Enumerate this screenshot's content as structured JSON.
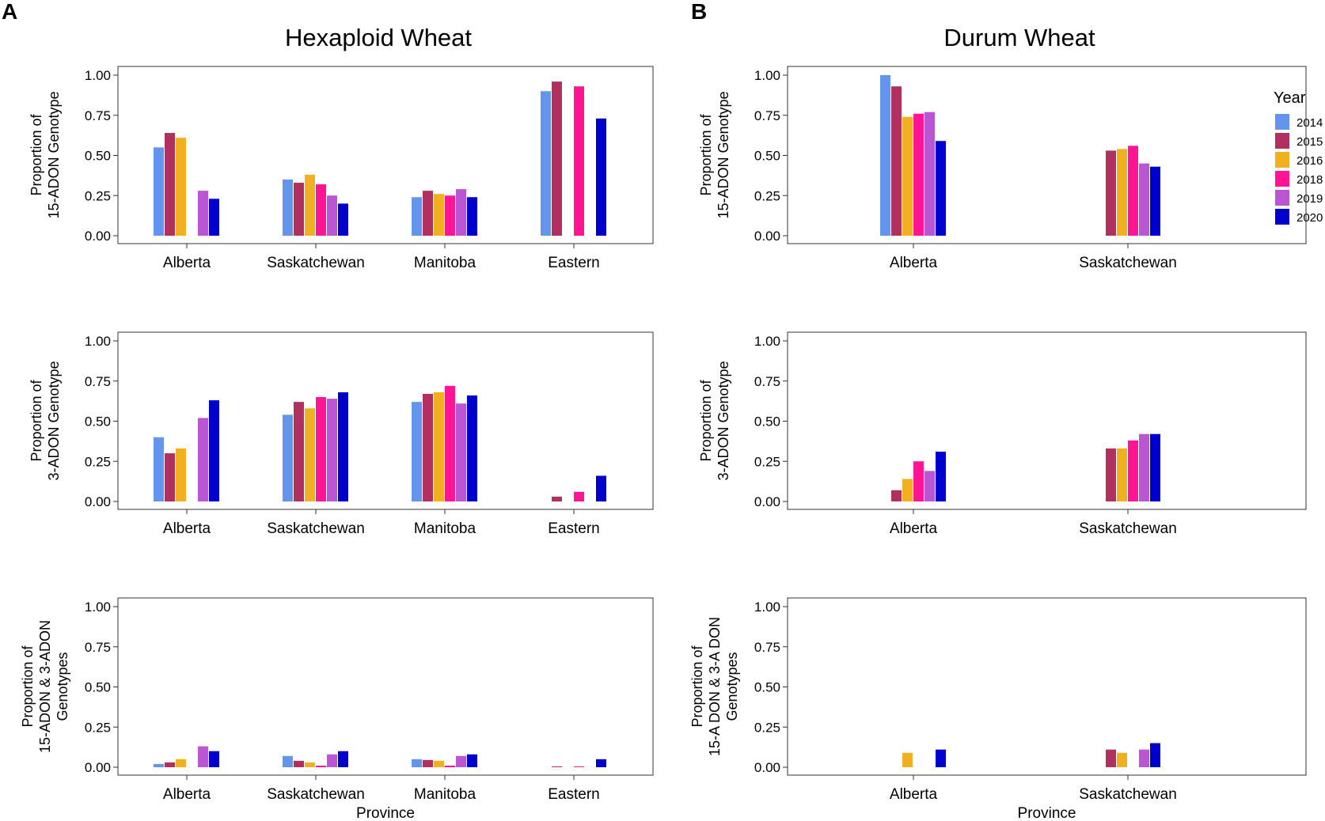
{
  "panel_labels": [
    "A",
    "B"
  ],
  "column_titles": [
    "Hexaploid Wheat",
    "Durum Wheat"
  ],
  "legend": {
    "title": "Year",
    "years": [
      "2014",
      "2015",
      "2016",
      "2018",
      "2019",
      "2020"
    ],
    "colors": [
      "#6495ED",
      "#B03060",
      "#F0B020",
      "#FF1493",
      "#BA55D3",
      "#0000CD"
    ]
  },
  "chart_data": [
    {
      "type": "bar",
      "panel": "A",
      "title": "Hexaploid Wheat",
      "ylabel_lines": [
        "Proportion of",
        "15-ADON Genotype"
      ],
      "xlabel": "",
      "ylim": [
        0,
        1
      ],
      "yticks": [
        "0.00",
        "0.25",
        "0.50",
        "0.75",
        "1.00"
      ],
      "categories": [
        "Alberta",
        "Saskatchewan",
        "Manitoba",
        "Eastern"
      ],
      "series": [
        {
          "name": "2014",
          "values": [
            0.55,
            0.35,
            0.24,
            0.9
          ]
        },
        {
          "name": "2015",
          "values": [
            0.64,
            0.33,
            0.28,
            0.96
          ]
        },
        {
          "name": "2016",
          "values": [
            0.61,
            0.38,
            0.26,
            null
          ]
        },
        {
          "name": "2018",
          "values": [
            null,
            0.32,
            0.25,
            0.93
          ]
        },
        {
          "name": "2019",
          "values": [
            0.28,
            0.25,
            0.29,
            null
          ]
        },
        {
          "name": "2020",
          "values": [
            0.23,
            0.2,
            0.24,
            0.73
          ]
        }
      ]
    },
    {
      "type": "bar",
      "panel": "B",
      "title": "Durum Wheat",
      "ylabel_lines": [
        "Proportion of",
        "15-ADON Genotype"
      ],
      "xlabel": "",
      "ylim": [
        0,
        1
      ],
      "yticks": [
        "0.00",
        "0.25",
        "0.50",
        "0.75",
        "1.00"
      ],
      "categories": [
        "Alberta",
        "Saskatchewan"
      ],
      "series": [
        {
          "name": "2014",
          "values": [
            1.0,
            null
          ]
        },
        {
          "name": "2015",
          "values": [
            0.93,
            0.53
          ]
        },
        {
          "name": "2016",
          "values": [
            0.74,
            0.54
          ]
        },
        {
          "name": "2018",
          "values": [
            0.76,
            0.56
          ]
        },
        {
          "name": "2019",
          "values": [
            0.77,
            0.45
          ]
        },
        {
          "name": "2020",
          "values": [
            0.59,
            0.43
          ]
        }
      ]
    },
    {
      "type": "bar",
      "panel": "A",
      "ylabel_lines": [
        "Proportion of",
        "3-ADON Genotype"
      ],
      "xlabel": "",
      "ylim": [
        0,
        1
      ],
      "yticks": [
        "0.00",
        "0.25",
        "0.50",
        "0.75",
        "1.00"
      ],
      "categories": [
        "Alberta",
        "Saskatchewan",
        "Manitoba",
        "Eastern"
      ],
      "series": [
        {
          "name": "2014",
          "values": [
            0.4,
            0.54,
            0.62,
            null
          ]
        },
        {
          "name": "2015",
          "values": [
            0.3,
            0.62,
            0.67,
            0.03
          ]
        },
        {
          "name": "2016",
          "values": [
            0.33,
            0.58,
            0.68,
            null
          ]
        },
        {
          "name": "2018",
          "values": [
            null,
            0.65,
            0.72,
            0.06
          ]
        },
        {
          "name": "2019",
          "values": [
            0.52,
            0.64,
            0.61,
            null
          ]
        },
        {
          "name": "2020",
          "values": [
            0.63,
            0.68,
            0.66,
            0.16
          ]
        }
      ]
    },
    {
      "type": "bar",
      "panel": "B",
      "ylabel_lines": [
        "Proportion of",
        "3-ADON Genotype"
      ],
      "xlabel": "",
      "ylim": [
        0,
        1
      ],
      "yticks": [
        "0.00",
        "0.25",
        "0.50",
        "0.75",
        "1.00"
      ],
      "categories": [
        "Alberta",
        "Saskatchewan"
      ],
      "series": [
        {
          "name": "2014",
          "values": [
            null,
            null
          ]
        },
        {
          "name": "2015",
          "values": [
            0.07,
            0.33
          ]
        },
        {
          "name": "2016",
          "values": [
            0.14,
            0.33
          ]
        },
        {
          "name": "2018",
          "values": [
            0.25,
            0.38
          ]
        },
        {
          "name": "2019",
          "values": [
            0.19,
            0.42
          ]
        },
        {
          "name": "2020",
          "values": [
            0.31,
            0.42
          ]
        }
      ]
    },
    {
      "type": "bar",
      "panel": "A",
      "ylabel_lines": [
        "Proportion of",
        "15-ADON & 3-ADON",
        "Genotypes"
      ],
      "xlabel": "Province",
      "ylim": [
        0,
        1
      ],
      "yticks": [
        "0.00",
        "0.25",
        "0.50",
        "0.75",
        "1.00"
      ],
      "categories": [
        "Alberta",
        "Saskatchewan",
        "Manitoba",
        "Eastern"
      ],
      "series": [
        {
          "name": "2014",
          "values": [
            0.02,
            0.07,
            0.05,
            null
          ]
        },
        {
          "name": "2015",
          "values": [
            0.03,
            0.04,
            0.045,
            0.005
          ]
        },
        {
          "name": "2016",
          "values": [
            0.05,
            0.03,
            0.04,
            null
          ]
        },
        {
          "name": "2018",
          "values": [
            null,
            0.01,
            0.01,
            0.005
          ]
        },
        {
          "name": "2019",
          "values": [
            0.13,
            0.08,
            0.07,
            null
          ]
        },
        {
          "name": "2020",
          "values": [
            0.1,
            0.1,
            0.08,
            0.05
          ]
        }
      ]
    },
    {
      "type": "bar",
      "panel": "B",
      "ylabel_lines": [
        "Proportion of",
        "15-A DON & 3-A DON",
        "Genotypes"
      ],
      "xlabel": "Province",
      "ylim": [
        0,
        1
      ],
      "yticks": [
        "0.00",
        "0.25",
        "0.50",
        "0.75",
        "1.00"
      ],
      "categories": [
        "Alberta",
        "Saskatchewan"
      ],
      "series": [
        {
          "name": "2014",
          "values": [
            null,
            null
          ]
        },
        {
          "name": "2015",
          "values": [
            null,
            0.11
          ]
        },
        {
          "name": "2016",
          "values": [
            0.09,
            0.09
          ]
        },
        {
          "name": "2018",
          "values": [
            null,
            null
          ]
        },
        {
          "name": "2019",
          "values": [
            null,
            0.11
          ]
        },
        {
          "name": "2020",
          "values": [
            0.11,
            0.15
          ]
        }
      ]
    }
  ]
}
